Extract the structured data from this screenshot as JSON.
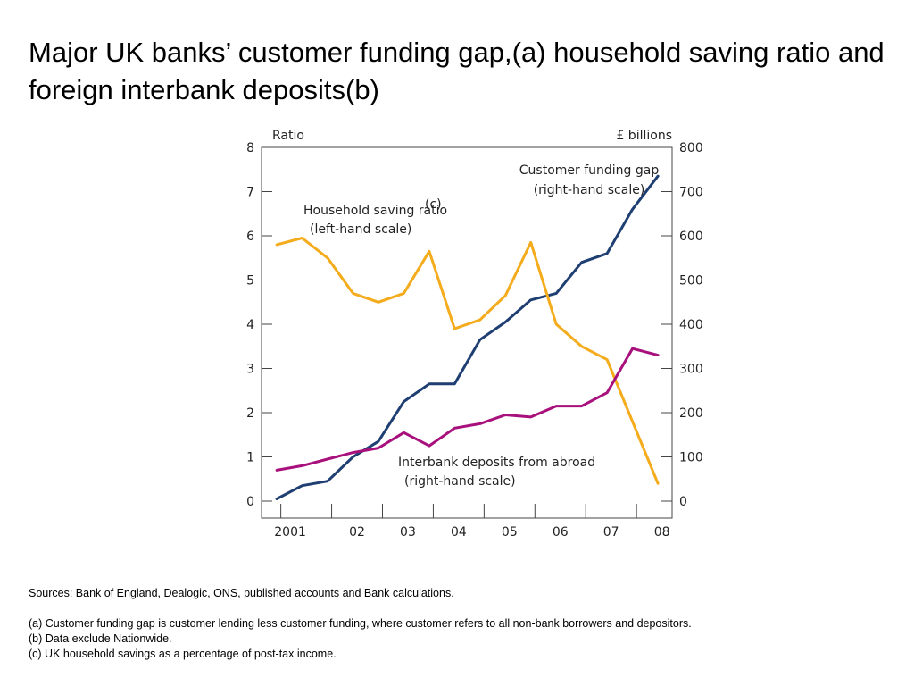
{
  "title": "Major UK banks’ customer funding gap,(a) household saving ratio and foreign interbank deposits(b)",
  "chart_data": {
    "type": "line",
    "x": [
      2000.92,
      2001.42,
      2001.92,
      2002.42,
      2002.92,
      2003.42,
      2003.92,
      2004.42,
      2004.92,
      2005.42,
      2005.92,
      2006.42,
      2006.92,
      2007.42,
      2007.92,
      2008.42
    ],
    "x_tick_labels": [
      "2001",
      "02",
      "03",
      "04",
      "05",
      "06",
      "07",
      "08"
    ],
    "y_left_label": "Ratio",
    "y_right_label": "£ billions",
    "y_left_lim": [
      0,
      8
    ],
    "y_right_lim": [
      0,
      800
    ],
    "y_left_ticks": [
      "0",
      "1",
      "2",
      "3",
      "4",
      "5",
      "6",
      "7",
      "8"
    ],
    "y_right_ticks": [
      "0",
      "100",
      "200",
      "300",
      "400",
      "500",
      "600",
      "700",
      "800"
    ],
    "series": [
      {
        "name": "Customer funding gap (right-hand scale)",
        "axis": "right",
        "color": "#1f3f73",
        "values": [
          5,
          35,
          45,
          100,
          135,
          225,
          265,
          265,
          365,
          405,
          455,
          470,
          540,
          560,
          660,
          735
        ]
      },
      {
        "name": "Household saving ratio(c) (left-hand scale)",
        "axis": "left",
        "color": "#f4ab1c",
        "values": [
          5.8,
          5.95,
          5.5,
          4.7,
          4.5,
          4.7,
          5.65,
          3.9,
          4.1,
          4.65,
          5.85,
          4.0,
          3.5,
          3.2,
          1.8,
          0.4
        ]
      },
      {
        "name": "Interbank deposits from abroad (right-hand scale)",
        "axis": "right",
        "color": "#a8107c",
        "values": [
          70,
          80,
          95,
          110,
          120,
          155,
          125,
          165,
          175,
          195,
          190,
          215,
          215,
          245,
          345,
          330
        ]
      }
    ],
    "annotations": [
      {
        "id": "funding-gap",
        "lines": [
          "Customer funding gap",
          "(right-hand scale)"
        ]
      },
      {
        "id": "saving-ratio",
        "lines": [
          "Household saving ratio",
          "(left-hand scale)"
        ],
        "superscript": "(c)"
      },
      {
        "id": "interbank",
        "lines": [
          "Interbank deposits from abroad",
          "(right-hand scale)"
        ]
      }
    ],
    "grid": false,
    "legend": "none"
  },
  "notes": {
    "sources": "Sources:  Bank of England, Dealogic, ONS, published accounts and Bank calculations.",
    "footnotes": [
      "(a)  Customer funding gap is customer lending less customer funding, where customer refers to all non-bank borrowers and depositors.",
      "(b)  Data exclude Nationwide.",
      "(c)  UK household savings as a percentage of post-tax income."
    ]
  }
}
